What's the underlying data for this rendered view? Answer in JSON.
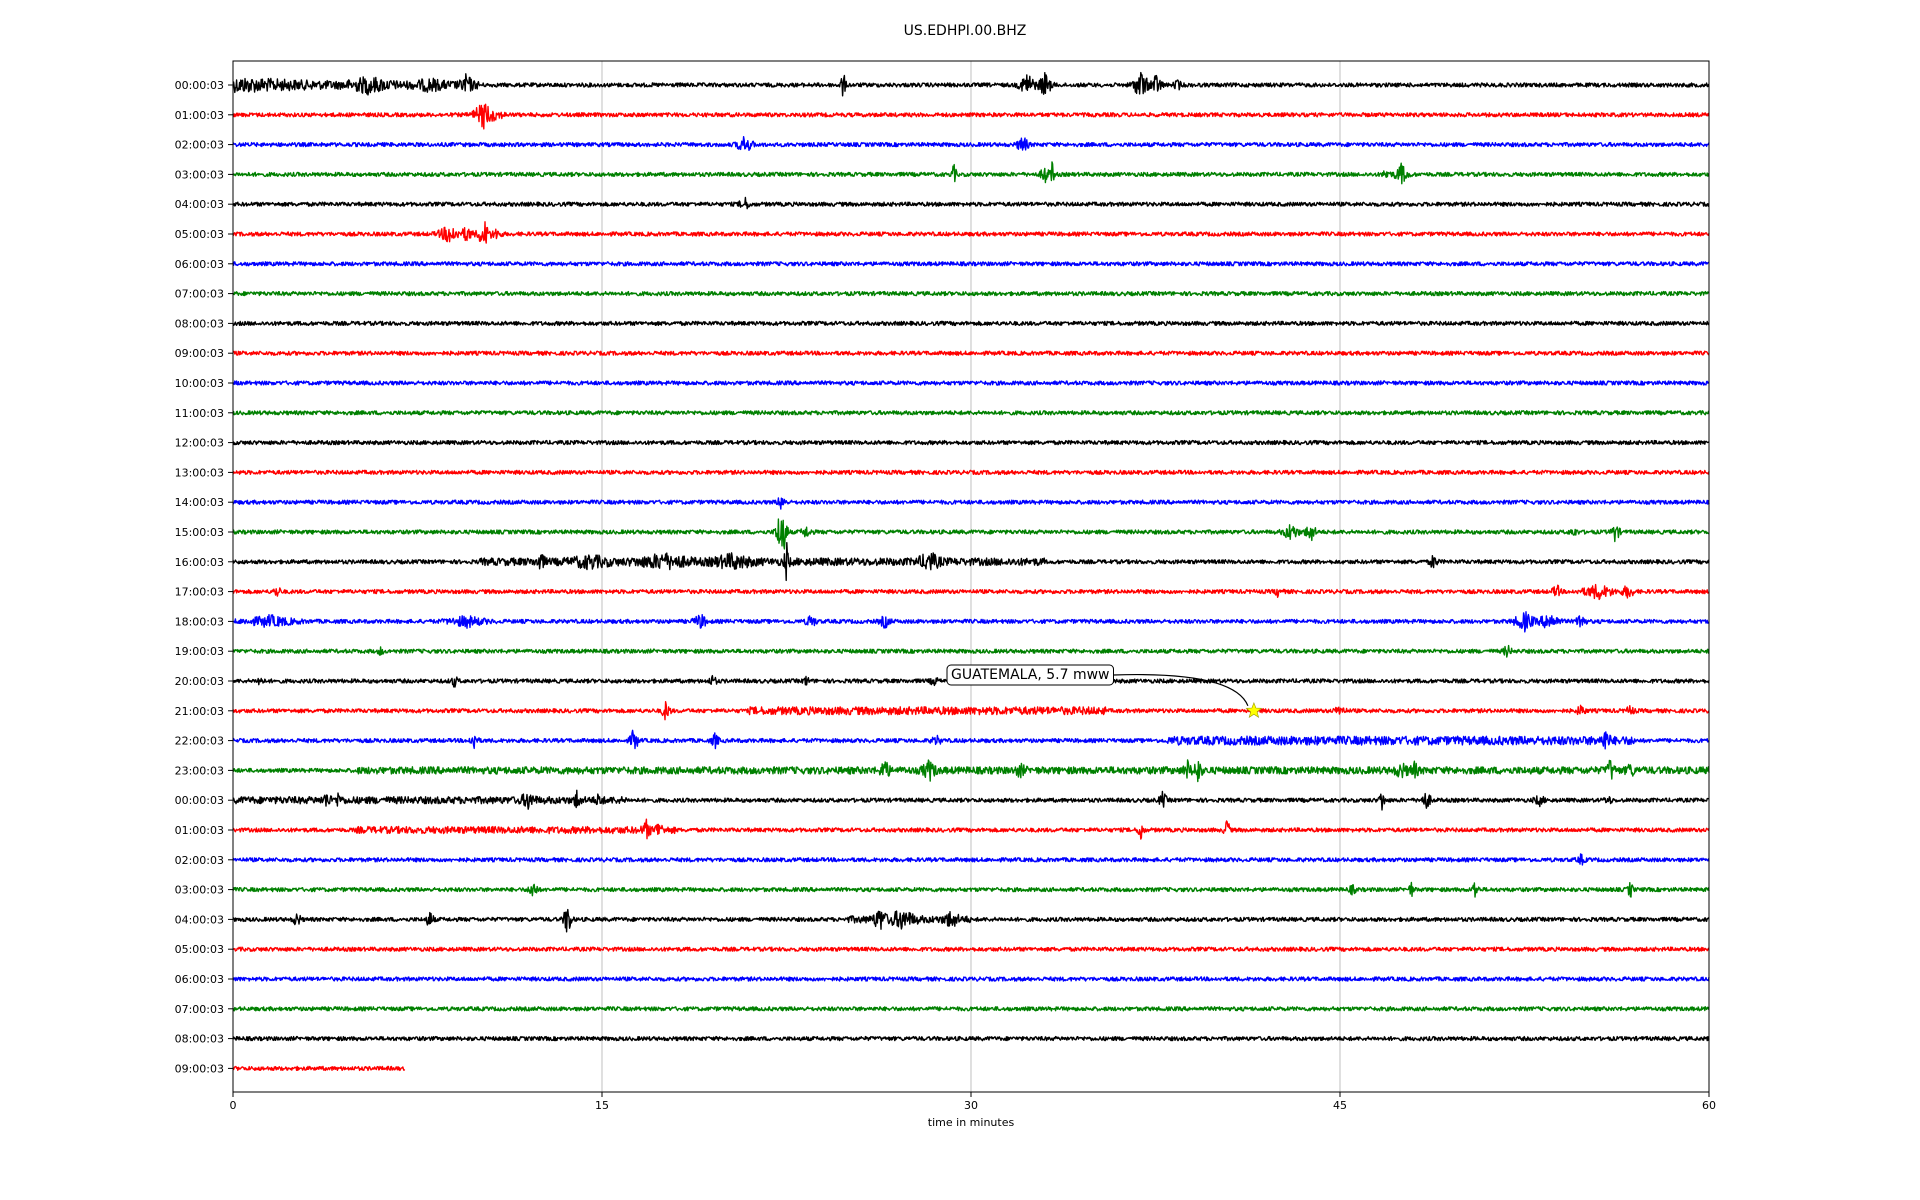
{
  "chart_data": {
    "type": "line",
    "title": "US.EDHPI.00.BHZ",
    "xlabel": "time in minutes",
    "ylabel": "",
    "xlim": [
      0,
      60
    ],
    "xticks": [
      0,
      15,
      30,
      45,
      60
    ],
    "grid": "vertical",
    "trace_colors": [
      "#000000",
      "#ff0000",
      "#0000ff",
      "#008000"
    ],
    "rows": [
      "00:00:03",
      "01:00:03",
      "02:00:03",
      "03:00:03",
      "04:00:03",
      "05:00:03",
      "06:00:03",
      "07:00:03",
      "08:00:03",
      "09:00:03",
      "10:00:03",
      "11:00:03",
      "12:00:03",
      "13:00:03",
      "14:00:03",
      "15:00:03",
      "16:00:03",
      "17:00:03",
      "18:00:03",
      "19:00:03",
      "20:00:03",
      "21:00:03",
      "22:00:03",
      "23:00:03",
      "00:00:03",
      "01:00:03",
      "02:00:03",
      "03:00:03",
      "04:00:03",
      "05:00:03",
      "06:00:03",
      "07:00:03",
      "08:00:03",
      "09:00:03"
    ],
    "last_row_end_minute": 7,
    "annotation": {
      "text": "GUATEMALA, 5.7 mww",
      "row": 21,
      "minute": 41.5,
      "marker": "star",
      "marker_color": "#ffff00"
    }
  }
}
